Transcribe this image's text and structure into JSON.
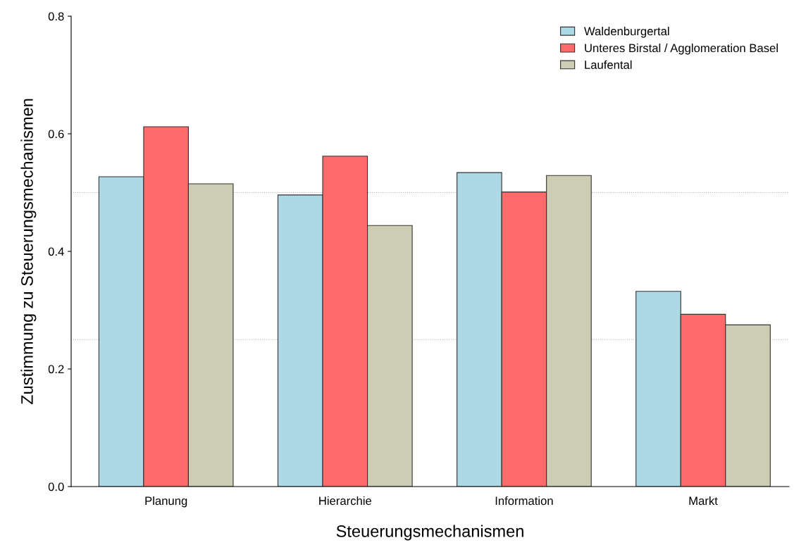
{
  "chart_data": {
    "type": "bar",
    "xlabel": "Steuerungsmechanismen",
    "ylabel": "Zustimmung zu Steuerungsmechanismen",
    "categories": [
      "Planung",
      "Hierarchie",
      "Information",
      "Markt"
    ],
    "series": [
      {
        "name": "Waldenburgertal",
        "color": "#add8e6",
        "values": [
          0.527,
          0.496,
          0.534,
          0.332
        ]
      },
      {
        "name": "Unteres Birstal / Agglomeration Basel",
        "color": "#ff6a6a",
        "values": [
          0.612,
          0.562,
          0.501,
          0.293
        ]
      },
      {
        "name": "Laufental",
        "color": "#cdcdb4",
        "values": [
          0.515,
          0.444,
          0.529,
          0.275
        ]
      }
    ],
    "ylim": [
      0,
      0.8
    ],
    "yticks": [
      {
        "value": 0,
        "label": "0.0"
      },
      0.2,
      0.4,
      0.6,
      0.8
    ],
    "ref_lines": [
      {
        "axis": "y",
        "value": 0.25,
        "color": "#aaaaaa",
        "line_style": "dotted"
      },
      {
        "axis": "y",
        "value": 0.5,
        "color": "#aaaaaa",
        "line_style": "dotted"
      }
    ],
    "grid": false,
    "legend": "top right"
  }
}
